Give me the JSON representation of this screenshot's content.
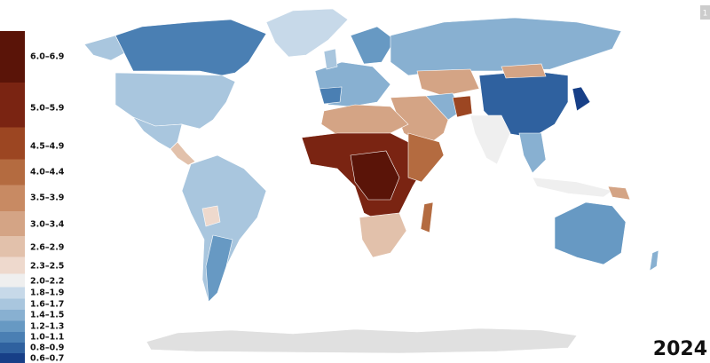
{
  "legend": {
    "items": [
      {
        "label": "6.0–6.9",
        "color": "#5a1408"
      },
      {
        "label": "5.0–5.9",
        "color": "#7a2412"
      },
      {
        "label": "4.5–4.9",
        "color": "#9c4622"
      },
      {
        "label": "4.0–4.4",
        "color": "#b46b40"
      },
      {
        "label": "3.5–3.9",
        "color": "#c88a63"
      },
      {
        "label": "3.0–3.4",
        "color": "#d4a485"
      },
      {
        "label": "2.6–2.9",
        "color": "#e2c1ab"
      },
      {
        "label": "2.3–2.5",
        "color": "#eed9cd"
      },
      {
        "label": "2.0–2.2",
        "color": "#efefef"
      },
      {
        "label": "1.8–1.9",
        "color": "#c7d9e9"
      },
      {
        "label": "1.6–1.7",
        "color": "#a9c6de"
      },
      {
        "label": "1.4–1.5",
        "color": "#88b0d1"
      },
      {
        "label": "1.2–1.3",
        "color": "#6799c3"
      },
      {
        "label": "1.0–1.1",
        "color": "#4a7fb3"
      },
      {
        "label": "0.8–0.9",
        "color": "#2f619f"
      },
      {
        "label": "0.6–0.7",
        "color": "#173f87"
      }
    ]
  },
  "year": "2024",
  "badge": "1"
}
